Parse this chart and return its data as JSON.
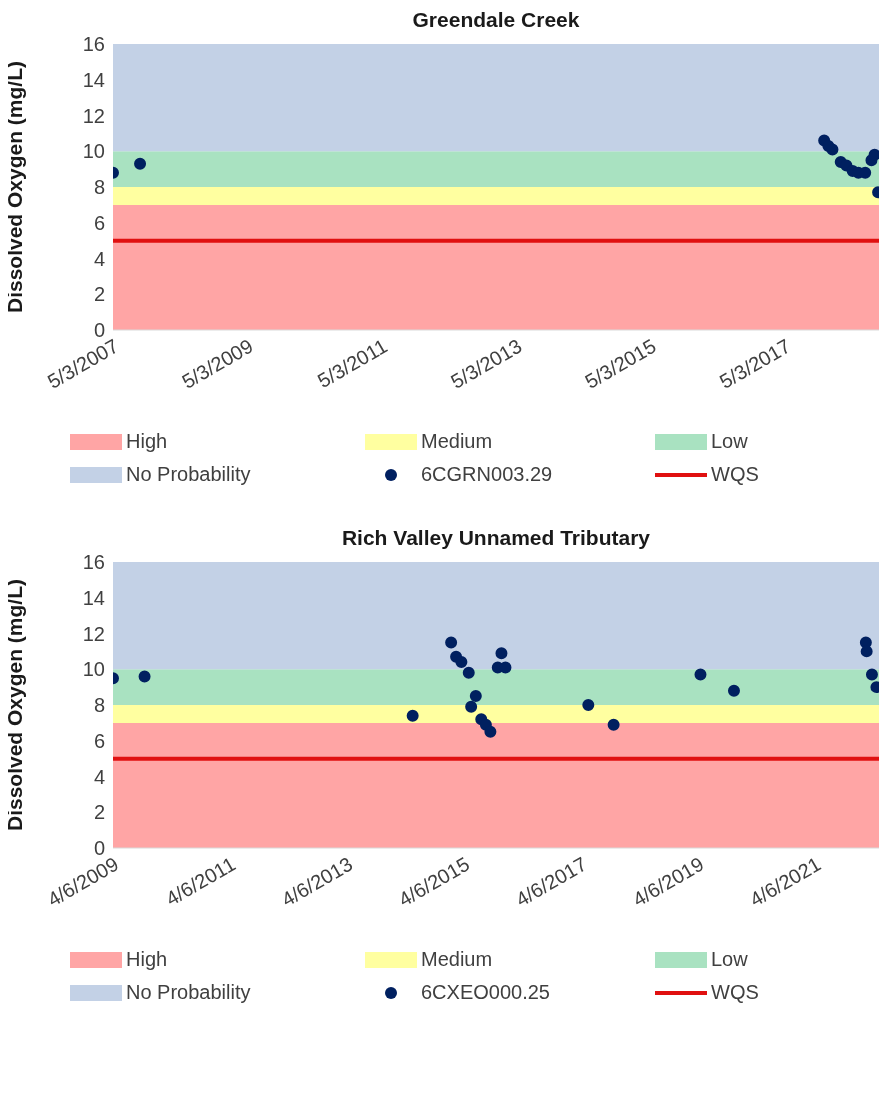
{
  "chart_data": [
    {
      "type": "scatter",
      "title": "Greendale Creek",
      "ylabel": "Dissolved Oxygen (mg/L)",
      "xlim": [
        "2007-05-03",
        "2018-09-25"
      ],
      "xticks": [
        {
          "value": "2007-05-03",
          "label": "5/3/2007"
        },
        {
          "value": "2009-05-03",
          "label": "5/3/2009"
        },
        {
          "value": "2011-05-03",
          "label": "5/3/2011"
        },
        {
          "value": "2013-05-03",
          "label": "5/3/2013"
        },
        {
          "value": "2015-05-03",
          "label": "5/3/2015"
        },
        {
          "value": "2017-05-03",
          "label": "5/3/2017"
        }
      ],
      "ylim": [
        0,
        16
      ],
      "yticks": [
        0,
        2,
        4,
        6,
        8,
        10,
        12,
        14,
        16
      ],
      "series": [
        {
          "name": "6CGRN003.29",
          "color": "#002060",
          "x": [
            "2007-05-03",
            "2007-09-27",
            "2017-12-01",
            "2017-12-24",
            "2018-01-15",
            "2018-03-01",
            "2018-04-01",
            "2018-05-05",
            "2018-06-05",
            "2018-07-12",
            "2018-08-15",
            "2018-09-01",
            "2018-09-20"
          ],
          "values": [
            8.8,
            9.3,
            10.6,
            10.3,
            10.1,
            9.4,
            9.2,
            8.9,
            8.8,
            8.8,
            9.5,
            9.8,
            7.7
          ]
        }
      ],
      "bands": [
        {
          "axis": "y",
          "from": 0,
          "to": 7,
          "label": "High",
          "color": "#ffa5a5"
        },
        {
          "axis": "y",
          "from": 7,
          "to": 8,
          "label": "Medium",
          "color": "#ffffa0"
        },
        {
          "axis": "y",
          "from": 8,
          "to": 10,
          "label": "Low",
          "color": "#a9e2c1"
        },
        {
          "axis": "y",
          "from": 10,
          "to": 16,
          "label": "No Probability",
          "color": "#c3d1e6"
        }
      ],
      "ref_lines": [
        {
          "axis": "y",
          "value": 5,
          "label": "WQS",
          "color": "#e01010"
        }
      ],
      "marker": "circle",
      "grid": false,
      "legend": "bottom"
    },
    {
      "type": "scatter",
      "title": "Rich Valley Unnamed Tributary",
      "ylabel": "Dissolved Oxygen (mg/L)",
      "xlim": [
        "2009-04-06",
        "2022-05-08"
      ],
      "xticks": [
        {
          "value": "2009-04-06",
          "label": "4/6/2009"
        },
        {
          "value": "2011-04-06",
          "label": "4/6/2011"
        },
        {
          "value": "2013-04-06",
          "label": "4/6/2013"
        },
        {
          "value": "2015-04-06",
          "label": "4/6/2015"
        },
        {
          "value": "2017-04-06",
          "label": "4/6/2017"
        },
        {
          "value": "2019-04-06",
          "label": "4/6/2019"
        },
        {
          "value": "2021-04-06",
          "label": "4/6/2021"
        }
      ],
      "ylim": [
        0,
        16
      ],
      "yticks": [
        0,
        2,
        4,
        6,
        8,
        10,
        12,
        14,
        16
      ],
      "series": [
        {
          "name": "6CXEO000.25",
          "color": "#002060",
          "x": [
            "2009-04-06",
            "2009-10-20",
            "2014-05-20",
            "2015-01-15",
            "2015-02-15",
            "2015-03-20",
            "2015-05-05",
            "2015-05-20",
            "2015-06-18",
            "2015-07-22",
            "2015-08-20",
            "2015-09-17",
            "2015-11-02",
            "2015-11-25",
            "2015-12-20",
            "2017-05-20",
            "2017-10-25",
            "2019-04-20",
            "2019-11-15",
            "2022-02-15",
            "2022-02-20",
            "2022-03-25",
            "2022-04-22"
          ],
          "values": [
            9.5,
            9.6,
            7.4,
            11.5,
            10.7,
            10.4,
            9.8,
            7.9,
            8.5,
            7.2,
            6.9,
            6.5,
            10.1,
            10.9,
            10.1,
            8.0,
            6.9,
            9.7,
            8.8,
            11.5,
            11.0,
            9.7,
            9.0
          ]
        }
      ],
      "bands": [
        {
          "axis": "y",
          "from": 0,
          "to": 7,
          "label": "High",
          "color": "#ffa5a5"
        },
        {
          "axis": "y",
          "from": 7,
          "to": 8,
          "label": "Medium",
          "color": "#ffffa0"
        },
        {
          "axis": "y",
          "from": 8,
          "to": 10,
          "label": "Low",
          "color": "#a9e2c1"
        },
        {
          "axis": "y",
          "from": 10,
          "to": 16,
          "label": "No Probability",
          "color": "#c3d1e6"
        }
      ],
      "ref_lines": [
        {
          "axis": "y",
          "value": 5,
          "label": "WQS",
          "color": "#e01010"
        }
      ],
      "marker": "circle",
      "grid": false,
      "legend": "bottom"
    }
  ]
}
